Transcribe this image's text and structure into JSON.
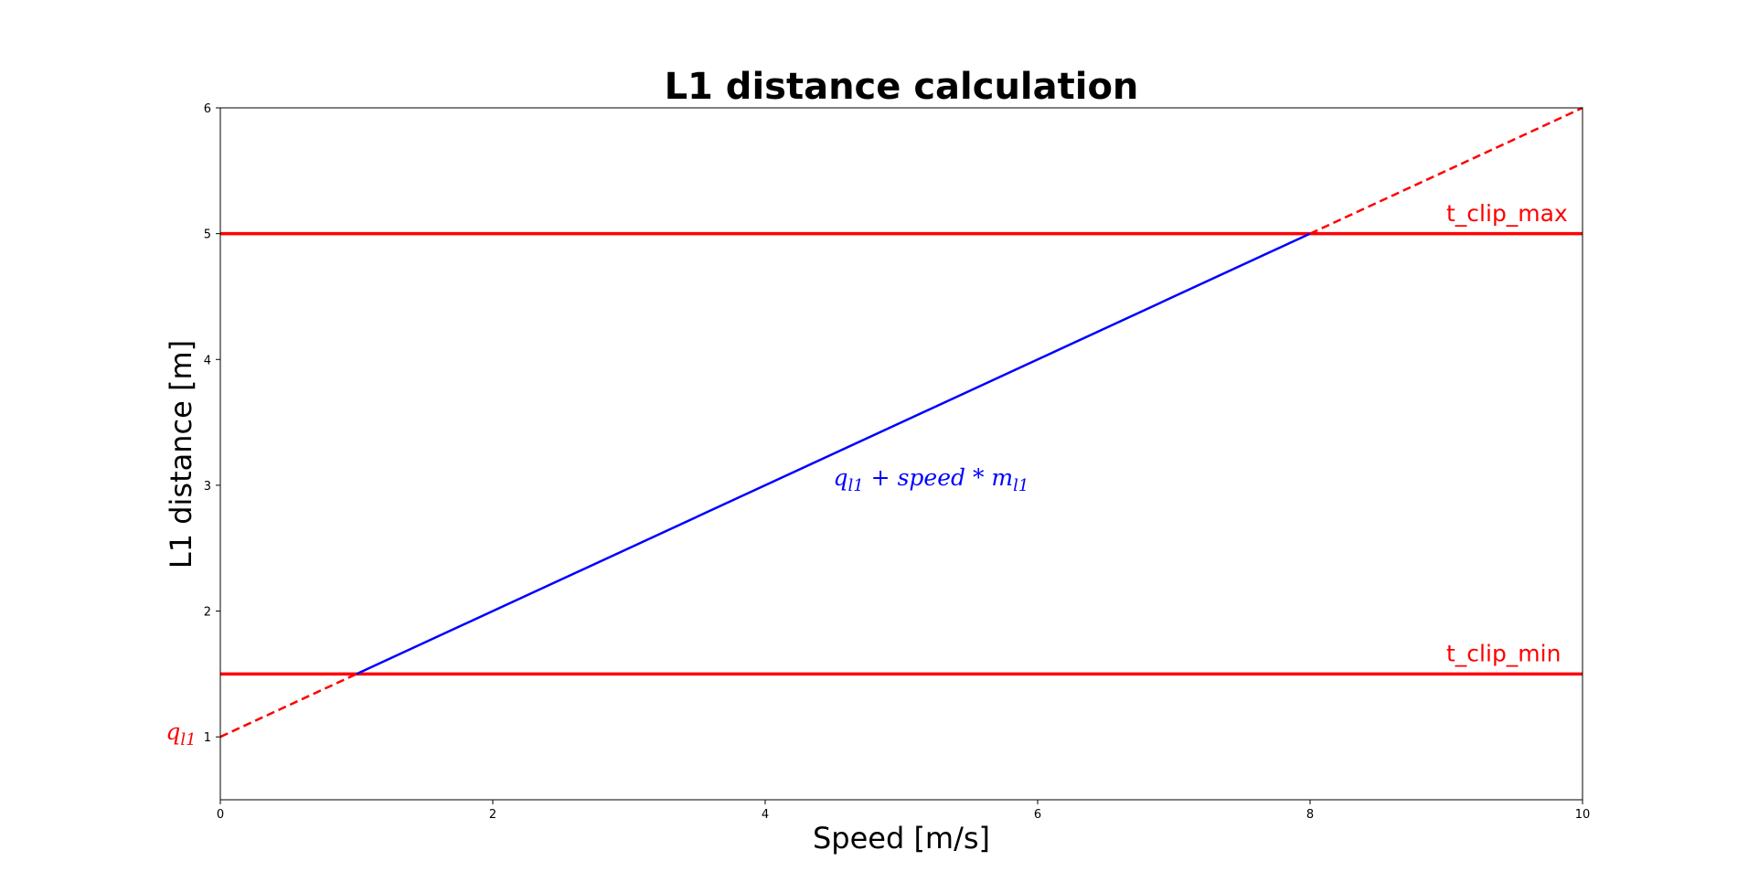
{
  "chart_data": {
    "type": "line",
    "title": "L1 distance calculation",
    "xlabel": "Speed [m/s]",
    "ylabel": "L1 distance [m]",
    "xlim": [
      0,
      10
    ],
    "ylim": [
      0.5,
      6
    ],
    "xticks": [
      0,
      2,
      4,
      6,
      8,
      10
    ],
    "yticks": [
      1,
      2,
      3,
      4,
      5,
      6
    ],
    "grid": false,
    "series": [
      {
        "name": "q_l1 + speed * m_l1",
        "color": "#0000ff",
        "style": "solid",
        "x": [
          1,
          8
        ],
        "y": [
          1.5,
          5
        ]
      },
      {
        "color": "#ff0000",
        "style": "dashed",
        "x": [
          0,
          1
        ],
        "y": [
          1,
          1.5
        ]
      },
      {
        "color": "#ff0000",
        "style": "dashed",
        "x": [
          8,
          10
        ],
        "y": [
          5,
          6
        ]
      }
    ],
    "hlines": [
      {
        "name": "t_clip_max",
        "y": 5,
        "color": "#ff0000"
      },
      {
        "name": "t_clip_min",
        "y": 1.5,
        "color": "#ff0000"
      }
    ],
    "annotations": [
      {
        "id": "t_clip_max",
        "text": "t_clip_max",
        "x": 9.0,
        "y": 5.1,
        "color": "#ff0000"
      },
      {
        "id": "t_clip_min",
        "text": "t_clip_min",
        "x": 9.0,
        "y": 1.6,
        "color": "#ff0000"
      },
      {
        "id": "q_l1",
        "text": "q",
        "sub": "l1",
        "x": -0.4,
        "y": 0.98,
        "color": "#ff0000"
      },
      {
        "id": "formula",
        "text": "q",
        "sub": "l1",
        "text2": " + speed * m",
        "sub2": "l1",
        "x": 4.5,
        "y": 3.0,
        "color": "#0000ff"
      }
    ]
  }
}
